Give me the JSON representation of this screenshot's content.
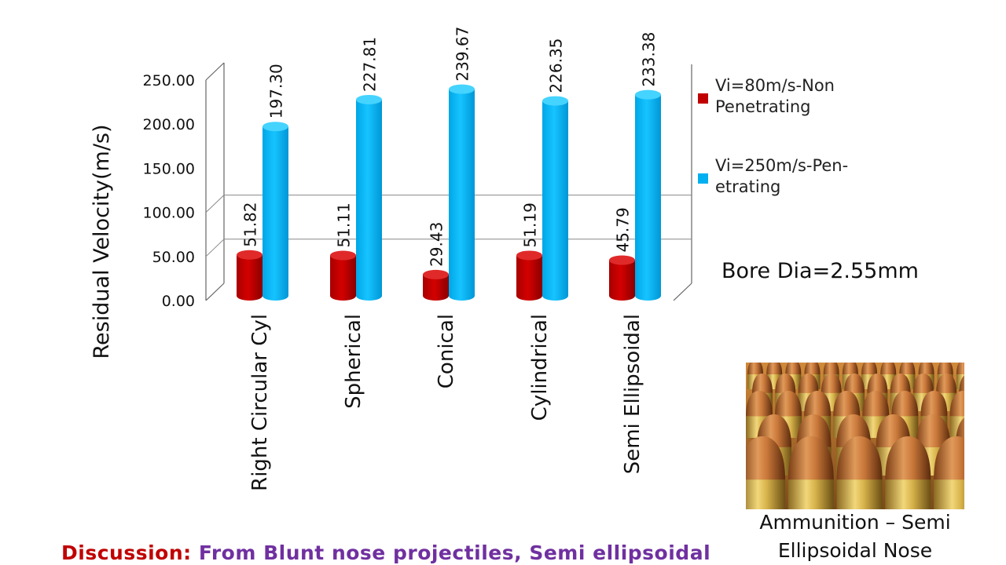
{
  "chart_data": {
    "type": "bar",
    "ylabel": "Residual Velocity(m/s)",
    "xlabel": "",
    "ylim": [
      0,
      250
    ],
    "yticks": [
      "0.00",
      "50.00",
      "100.00",
      "150.00",
      "200.00",
      "250.00"
    ],
    "categories": [
      "Right Circular Cyl",
      "Spherical",
      "Conical",
      "Cylindrical",
      "Semi Ellipsoidal"
    ],
    "series": [
      {
        "name": "Vi=80m/s-Non Penetrating",
        "color": "#c00000",
        "values": [
          51.82,
          51.11,
          29.43,
          51.19,
          45.79
        ],
        "labels": [
          "51.82",
          "51.11",
          "29.43",
          "51.19",
          "45.79"
        ]
      },
      {
        "name": "Vi=250m/s-Pen-etrating",
        "color": "#00b0f0",
        "values": [
          197.3,
          227.81,
          239.67,
          226.35,
          233.38
        ],
        "labels": [
          "197.30",
          "227.81",
          "239.67",
          "226.35",
          "233.38"
        ]
      }
    ],
    "legend": "right"
  },
  "legend": {
    "items": [
      {
        "line1": "Vi=80m/s-Non",
        "line2": "Penetrating",
        "color": "#c00000"
      },
      {
        "line1": "Vi=250m/s-Pen-",
        "line2": "etrating",
        "color": "#00b0f0"
      }
    ]
  },
  "note": "Bore Dia=2.55mm",
  "photo": {
    "caption_line1": "Ammunition – Semi",
    "caption_line2": "Ellipsoidal Nose"
  },
  "discussion": {
    "lead": "Discussion:",
    "text": "From Blunt nose projectiles, Semi ellipsoidal"
  }
}
